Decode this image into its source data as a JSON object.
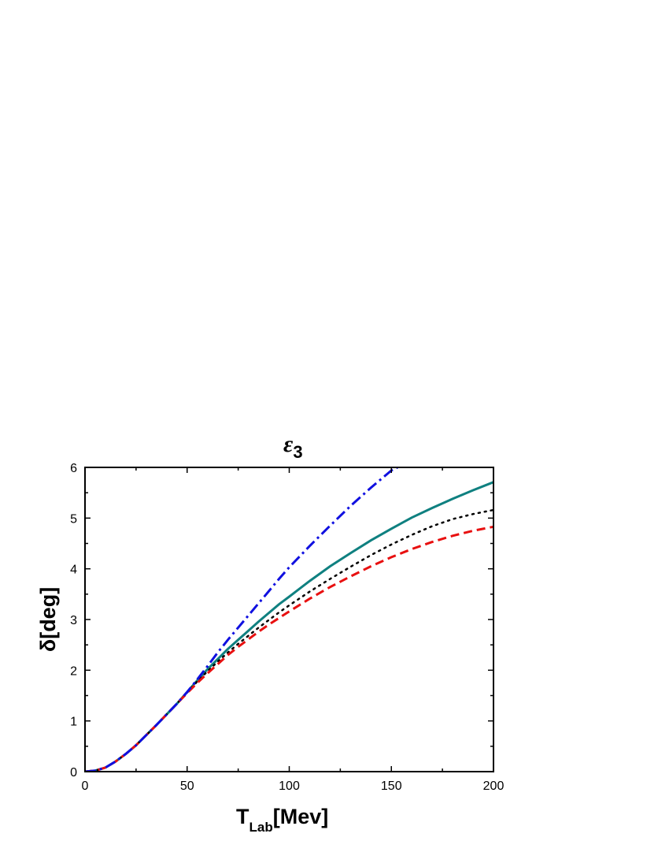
{
  "chart_data": {
    "type": "line",
    "title": "ε",
    "title_subscript": "3",
    "xlabel": "T",
    "xlabel_subscript": "Lab",
    "xlabel_suffix": "[Mev]",
    "ylabel": "δ[deg]",
    "xlim": [
      0,
      200
    ],
    "ylim": [
      0,
      6
    ],
    "x_ticks": [
      0,
      50,
      100,
      150,
      200
    ],
    "y_ticks": [
      0,
      1,
      2,
      3,
      4,
      5,
      6
    ],
    "grid": false,
    "legend": "none",
    "series": [
      {
        "style": "solid",
        "color": "#0f8080",
        "x": [
          0,
          5,
          10,
          15,
          20,
          25,
          30,
          35,
          40,
          45,
          50,
          55,
          60,
          65,
          70,
          75,
          80,
          85,
          90,
          95,
          100,
          110,
          120,
          130,
          140,
          150,
          160,
          170,
          180,
          190,
          200
        ],
        "y": [
          0,
          0.02,
          0.08,
          0.2,
          0.35,
          0.52,
          0.72,
          0.92,
          1.13,
          1.34,
          1.57,
          1.8,
          2.02,
          2.22,
          2.42,
          2.6,
          2.78,
          2.96,
          3.13,
          3.3,
          3.45,
          3.76,
          4.05,
          4.31,
          4.56,
          4.79,
          5.01,
          5.2,
          5.38,
          5.55,
          5.71
        ]
      },
      {
        "style": "dotted",
        "color": "#000000",
        "x": [
          0,
          5,
          10,
          15,
          20,
          25,
          30,
          35,
          40,
          45,
          50,
          55,
          60,
          65,
          70,
          75,
          80,
          85,
          90,
          95,
          100,
          110,
          120,
          130,
          140,
          150,
          160,
          170,
          180,
          190,
          200
        ],
        "y": [
          0,
          0.02,
          0.08,
          0.2,
          0.35,
          0.52,
          0.72,
          0.92,
          1.13,
          1.34,
          1.56,
          1.78,
          1.98,
          2.17,
          2.35,
          2.52,
          2.68,
          2.84,
          2.99,
          3.14,
          3.28,
          3.55,
          3.8,
          4.04,
          4.27,
          4.48,
          4.67,
          4.84,
          4.98,
          5.08,
          5.16
        ]
      },
      {
        "style": "dashed",
        "color": "#e81010",
        "x": [
          0,
          5,
          10,
          15,
          20,
          25,
          30,
          35,
          40,
          45,
          50,
          55,
          60,
          65,
          70,
          75,
          80,
          85,
          90,
          95,
          100,
          110,
          120,
          130,
          140,
          150,
          160,
          170,
          180,
          190,
          200
        ],
        "y": [
          0,
          0.02,
          0.08,
          0.2,
          0.35,
          0.52,
          0.72,
          0.92,
          1.13,
          1.34,
          1.55,
          1.75,
          1.94,
          2.12,
          2.3,
          2.46,
          2.61,
          2.76,
          2.9,
          3.03,
          3.16,
          3.41,
          3.64,
          3.85,
          4.05,
          4.23,
          4.39,
          4.53,
          4.65,
          4.75,
          4.83
        ]
      },
      {
        "style": "dash-dot",
        "color": "#1010e0",
        "x": [
          0,
          5,
          10,
          15,
          20,
          25,
          30,
          35,
          40,
          45,
          50,
          55,
          60,
          65,
          70,
          75,
          80,
          85,
          90,
          95,
          100,
          110,
          120,
          130,
          140,
          150,
          153
        ],
        "y": [
          0,
          0.02,
          0.08,
          0.2,
          0.35,
          0.52,
          0.72,
          0.92,
          1.13,
          1.34,
          1.57,
          1.82,
          2.08,
          2.35,
          2.6,
          2.84,
          3.08,
          3.32,
          3.56,
          3.8,
          4.03,
          4.45,
          4.85,
          5.24,
          5.6,
          5.94,
          6.0
        ]
      }
    ]
  }
}
